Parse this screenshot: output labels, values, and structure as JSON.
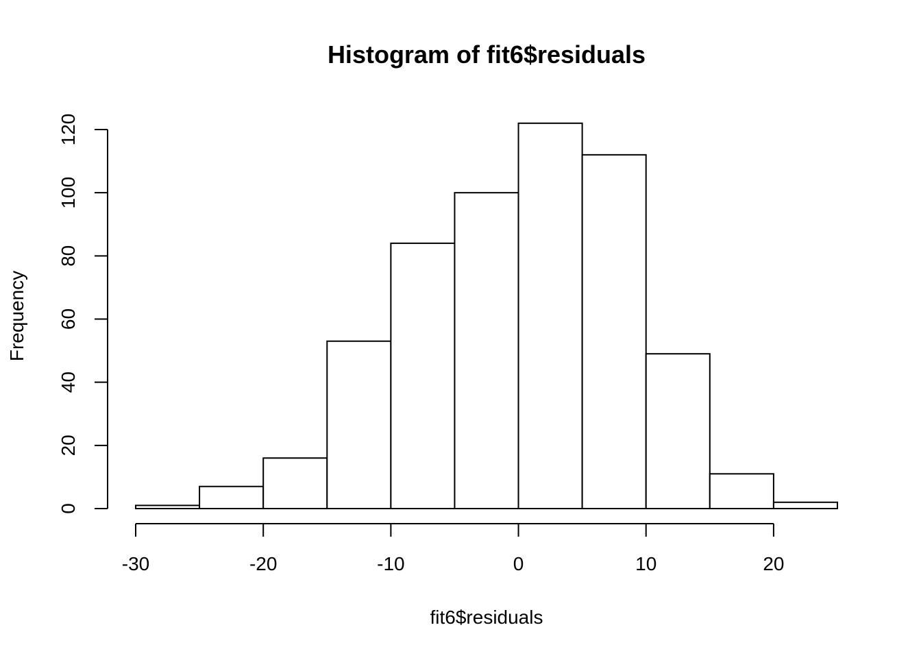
{
  "chart_data": {
    "type": "bar",
    "title": "Histogram of fit6$residuals",
    "xlabel": "fit6$residuals",
    "ylabel": "Frequency",
    "bins": [
      {
        "x0": -30,
        "x1": -25,
        "count": 1
      },
      {
        "x0": -25,
        "x1": -20,
        "count": 7
      },
      {
        "x0": -20,
        "x1": -15,
        "count": 16
      },
      {
        "x0": -15,
        "x1": -10,
        "count": 53
      },
      {
        "x0": -10,
        "x1": -5,
        "count": 84
      },
      {
        "x0": -5,
        "x1": 0,
        "count": 100
      },
      {
        "x0": 0,
        "x1": 5,
        "count": 122
      },
      {
        "x0": 5,
        "x1": 10,
        "count": 112
      },
      {
        "x0": 10,
        "x1": 15,
        "count": 49
      },
      {
        "x0": 15,
        "x1": 20,
        "count": 11
      },
      {
        "x0": 20,
        "x1": 25,
        "count": 2
      }
    ],
    "xticks": [
      -30,
      -20,
      -10,
      0,
      10,
      20
    ],
    "xtick_labels": [
      "-30",
      "-20",
      "-10",
      "0",
      "10",
      "20"
    ],
    "yticks": [
      0,
      20,
      40,
      60,
      80,
      100,
      120
    ],
    "ytick_labels": [
      "0",
      "20",
      "40",
      "60",
      "80",
      "100",
      "120"
    ],
    "xlim": [
      -30,
      25
    ],
    "ylim": [
      0,
      122
    ],
    "grid": false,
    "colors": {
      "bar_fill": "#ffffff",
      "bar_stroke": "#000000"
    }
  }
}
